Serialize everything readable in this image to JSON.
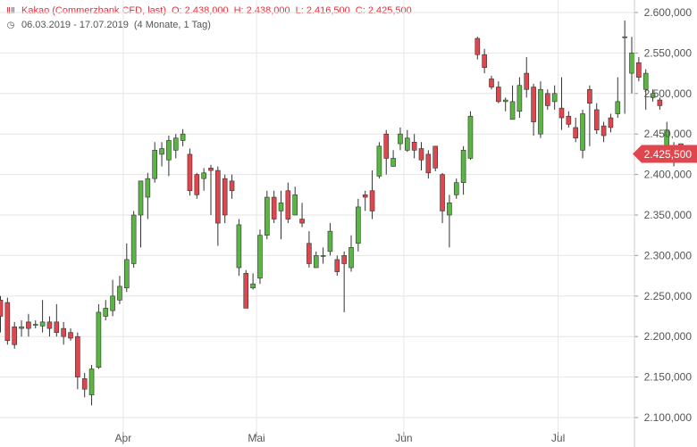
{
  "header": {
    "instrument": "Kakao (Commerzbank CFD, last)",
    "open": "O: 2.438,000",
    "high": "H: 2.438,000",
    "low": "L: 2.416,500",
    "close": "C: 2.425,500",
    "range": "06.03.2019 - 17.07.2019",
    "period": "(4 Monate, 1 Tag)"
  },
  "colors": {
    "up": "#5ab543",
    "down": "#e0464e",
    "grid": "#e6e6e6",
    "axis_text": "#555555",
    "header_red": "#e2313b"
  },
  "chart_data": {
    "type": "candlestick",
    "x_labels": [
      "Apr",
      "Mai",
      "Jun",
      "Jul"
    ],
    "y_ticks": [
      "2.100,000",
      "2.150,000",
      "2.200,000",
      "2.250,000",
      "2.300,000",
      "2.350,000",
      "2.400,000",
      "2.450,000",
      "2.500,000",
      "2.550,000",
      "2.600,000"
    ],
    "ylim": [
      2100,
      2600
    ],
    "last_price_label": "2.425,500",
    "last_price": 2425.5,
    "candles": [
      [
        2245,
        2225,
        2250,
        2205
      ],
      [
        2242,
        2195,
        2248,
        2190
      ],
      [
        2212,
        2190,
        2218,
        2185
      ],
      [
        2210,
        2212,
        2220,
        2200
      ],
      [
        2218,
        2210,
        2228,
        2200
      ],
      [
        2215,
        2215,
        2220,
        2210
      ],
      [
        2213,
        2218,
        2245,
        2205
      ],
      [
        2218,
        2210,
        2225,
        2200
      ],
      [
        2218,
        2205,
        2240,
        2200
      ],
      [
        2210,
        2200,
        2218,
        2190
      ],
      [
        2205,
        2198,
        2210,
        2195
      ],
      [
        2200,
        2150,
        2205,
        2135
      ],
      [
        2148,
        2135,
        2155,
        2125
      ],
      [
        2128,
        2160,
        2165,
        2115
      ],
      [
        2162,
        2230,
        2240,
        2160
      ],
      [
        2225,
        2235,
        2245,
        2220
      ],
      [
        2232,
        2250,
        2270,
        2225
      ],
      [
        2245,
        2262,
        2275,
        2240
      ],
      [
        2260,
        2295,
        2315,
        2255
      ],
      [
        2290,
        2350,
        2355,
        2285
      ],
      [
        2350,
        2392,
        2365,
        2310
      ],
      [
        2372,
        2395,
        2402,
        2345
      ],
      [
        2395,
        2430,
        2440,
        2390
      ],
      [
        2425,
        2432,
        2440,
        2410
      ],
      [
        2418,
        2442,
        2448,
        2398
      ],
      [
        2430,
        2445,
        2450,
        2420
      ],
      [
        2442,
        2450,
        2456,
        2435
      ],
      [
        2425,
        2380,
        2432,
        2374
      ],
      [
        2400,
        2375,
        2402,
        2370
      ],
      [
        2395,
        2402,
        2408,
        2380
      ],
      [
        2408,
        2405,
        2412,
        2350
      ],
      [
        2405,
        2340,
        2410,
        2312
      ],
      [
        2395,
        2350,
        2400,
        2340
      ],
      [
        2392,
        2380,
        2400,
        2370
      ],
      [
        2285,
        2338,
        2345,
        2275
      ],
      [
        2278,
        2235,
        2282,
        2240
      ],
      [
        2260,
        2265,
        2278,
        2258
      ],
      [
        2272,
        2325,
        2332,
        2265
      ],
      [
        2325,
        2372,
        2380,
        2320
      ],
      [
        2372,
        2345,
        2380,
        2340
      ],
      [
        2355,
        2365,
        2380,
        2320
      ],
      [
        2380,
        2345,
        2390,
        2340
      ],
      [
        2350,
        2375,
        2385,
        2355
      ],
      [
        2345,
        2340,
        2365,
        2335
      ],
      [
        2315,
        2290,
        2330,
        2285
      ],
      [
        2285,
        2300,
        2305,
        2285
      ],
      [
        2300,
        2300,
        2310,
        2290
      ],
      [
        2305,
        2330,
        2340,
        2300
      ],
      [
        2295,
        2280,
        2300,
        2275
      ],
      [
        2300,
        2290,
        2305,
        2230
      ],
      [
        2285,
        2310,
        2325,
        2280
      ],
      [
        2315,
        2360,
        2370,
        2305
      ],
      [
        2375,
        2372,
        2380,
        2355
      ],
      [
        2380,
        2355,
        2405,
        2345
      ],
      [
        2398,
        2435,
        2440,
        2395
      ],
      [
        2450,
        2420,
        2455,
        2400
      ],
      [
        2410,
        2420,
        2430,
        2410
      ],
      [
        2438,
        2450,
        2458,
        2430
      ],
      [
        2430,
        2445,
        2455,
        2428
      ],
      [
        2440,
        2430,
        2450,
        2420
      ],
      [
        2432,
        2418,
        2440,
        2405
      ],
      [
        2425,
        2402,
        2430,
        2395
      ],
      [
        2435,
        2408,
        2432,
        2404
      ],
      [
        2400,
        2355,
        2402,
        2340
      ],
      [
        2350,
        2365,
        2375,
        2310
      ],
      [
        2375,
        2390,
        2395,
        2370
      ],
      [
        2390,
        2430,
        2435,
        2375
      ],
      [
        2420,
        2472,
        2478,
        2418
      ],
      [
        2568,
        2548,
        2570,
        2542
      ],
      [
        2548,
        2532,
        2555,
        2525
      ],
      [
        2518,
        2508,
        2522,
        2505
      ],
      [
        2508,
        2490,
        2515,
        2488
      ],
      [
        2490,
        2492,
        2495,
        2478
      ],
      [
        2468,
        2490,
        2510,
        2470
      ],
      [
        2478,
        2510,
        2520,
        2470
      ],
      [
        2525,
        2505,
        2545,
        2495
      ],
      [
        2508,
        2465,
        2512,
        2448
      ],
      [
        2450,
        2505,
        2515,
        2445
      ],
      [
        2500,
        2485,
        2505,
        2480
      ],
      [
        2490,
        2500,
        2510,
        2480
      ],
      [
        2482,
        2470,
        2520,
        2455
      ],
      [
        2472,
        2462,
        2478,
        2458
      ],
      [
        2458,
        2445,
        2470,
        2440
      ],
      [
        2430,
        2475,
        2480,
        2420
      ],
      [
        2505,
        2488,
        2510,
        2435
      ],
      [
        2480,
        2455,
        2488,
        2450
      ],
      [
        2460,
        2448,
        2465,
        2440
      ],
      [
        2470,
        2458,
        2475,
        2452
      ],
      [
        2475,
        2490,
        2520,
        2470
      ],
      [
        2570,
        2570,
        2590,
        2475
      ],
      [
        2525,
        2550,
        2570,
        2500
      ],
      [
        2538,
        2520,
        2545,
        2515
      ],
      [
        2505,
        2525,
        2530,
        2480
      ],
      [
        2495,
        2500,
        2505,
        2490
      ],
      [
        2492,
        2485,
        2495,
        2480
      ],
      [
        2430,
        2455,
        2465,
        2425
      ],
      [
        2418,
        2425,
        2440,
        2410
      ],
      [
        2438,
        2425,
        2438,
        2416.5
      ]
    ]
  }
}
